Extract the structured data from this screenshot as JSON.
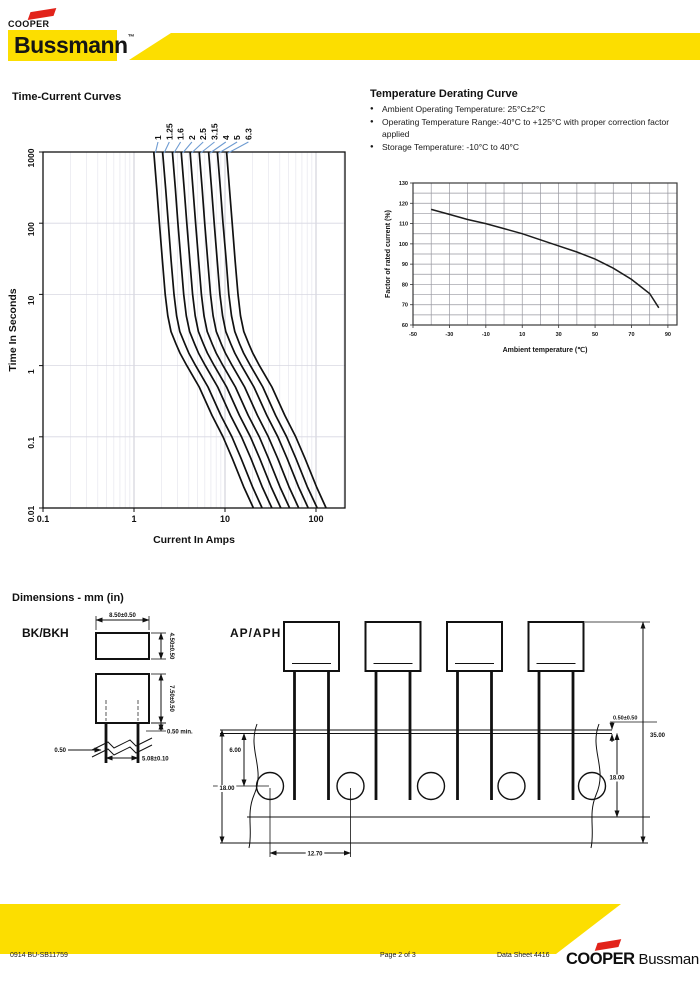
{
  "header": {
    "brand_top": "COOPER",
    "brand_main": "Bussmann",
    "brand_tm": "™"
  },
  "colors": {
    "yellow": "#FCDE00",
    "red": "#E2231A",
    "leader_blue": "#6E9BD1",
    "curve_black": "#111111"
  },
  "derating": {
    "title": "Temperature Derating Curve",
    "bullets": [
      "Ambient Operating Temperature: 25°C±2°C",
      "Operating Temperature Range:-40°C to +125°C with proper correction factor applied",
      "Storage Temperature: -10°C to 40°C"
    ]
  },
  "chart_data": [
    {
      "type": "line",
      "title": "Time-Current Curves",
      "xlabel": "Current In Amps",
      "ylabel": "Time In Seconds",
      "xscale": "log",
      "yscale": "log",
      "xlim": [
        0.1,
        210
      ],
      "ylim": [
        0.01,
        1000
      ],
      "xticks": [
        0.1,
        1,
        10,
        100
      ],
      "yticks": [
        0.01,
        0.1,
        1,
        10,
        100,
        1000
      ],
      "grid": "log-minor-vertical, log-major-horizontal",
      "legend_position": "labels-above-curves",
      "times": [
        1000,
        300,
        100,
        30,
        10,
        5,
        3,
        2,
        1.5,
        1,
        0.5,
        0.2,
        0.1,
        0.05,
        0.02,
        0.01
      ],
      "series": [
        {
          "name": "1",
          "amps": [
            1.65,
            1.78,
            1.9,
            2.05,
            2.2,
            2.35,
            2.55,
            2.9,
            3.2,
            3.8,
            5.2,
            7.2,
            9.5,
            12.0,
            16.0,
            20.5
          ]
        },
        {
          "name": "1.25",
          "amps": [
            2.06,
            2.23,
            2.38,
            2.56,
            2.75,
            2.94,
            3.19,
            3.63,
            4.0,
            4.75,
            6.5,
            9.0,
            11.9,
            15.0,
            20.0,
            25.6
          ]
        },
        {
          "name": "1.6",
          "amps": [
            2.64,
            2.85,
            3.04,
            3.28,
            3.52,
            3.76,
            4.08,
            4.64,
            5.12,
            6.08,
            8.32,
            11.5,
            15.2,
            19.2,
            25.6,
            32.8
          ]
        },
        {
          "name": "2",
          "amps": [
            3.3,
            3.56,
            3.8,
            4.1,
            4.4,
            4.7,
            5.1,
            5.8,
            6.4,
            7.6,
            10.4,
            14.4,
            19.0,
            24.0,
            32.0,
            41.0
          ]
        },
        {
          "name": "2.5",
          "amps": [
            4.13,
            4.45,
            4.75,
            5.13,
            5.5,
            5.88,
            6.38,
            7.25,
            8.0,
            9.5,
            13.0,
            18.0,
            23.8,
            30.0,
            40.0,
            51.3
          ]
        },
        {
          "name": "3.15",
          "amps": [
            5.2,
            5.61,
            5.99,
            6.46,
            6.93,
            7.4,
            8.03,
            9.14,
            10.1,
            12.0,
            16.4,
            22.7,
            29.9,
            37.8,
            50.4,
            64.6
          ]
        },
        {
          "name": "4",
          "amps": [
            6.6,
            7.12,
            7.6,
            8.2,
            8.8,
            9.4,
            10.2,
            11.6,
            12.8,
            15.2,
            20.8,
            28.8,
            38.0,
            48.0,
            64.0,
            82.0
          ]
        },
        {
          "name": "5",
          "amps": [
            8.25,
            8.9,
            9.5,
            10.3,
            11.0,
            11.8,
            12.8,
            14.5,
            16.0,
            19.0,
            26.0,
            36.0,
            47.5,
            60.0,
            80.0,
            103.0
          ]
        },
        {
          "name": "6.3",
          "amps": [
            10.4,
            11.2,
            12.0,
            12.9,
            13.9,
            14.8,
            16.1,
            18.3,
            20.2,
            23.9,
            32.8,
            45.4,
            59.9,
            75.6,
            101.0,
            129.0
          ]
        }
      ]
    },
    {
      "type": "line",
      "title": "Temperature Derating Curve",
      "xlabel": "Ambient temperature  (℃)",
      "ylabel": "Factor of rated current  (%)",
      "xlim": [
        -50,
        95
      ],
      "ylim": [
        60,
        130
      ],
      "xticks": [
        -50,
        -30,
        -10,
        10,
        30,
        50,
        70,
        90
      ],
      "yticks": [
        60,
        70,
        80,
        90,
        100,
        110,
        120,
        130
      ],
      "grid": "x-every-10, y-every-5",
      "x": [
        -40,
        -30,
        -20,
        -10,
        0,
        10,
        20,
        30,
        40,
        50,
        60,
        70,
        80,
        85
      ],
      "y": [
        117,
        114.5,
        112,
        110,
        107.5,
        105,
        102,
        99,
        96,
        92.5,
        88,
        82.5,
        75.5,
        68.5
      ]
    }
  ],
  "dimensions": {
    "title": "Dimensions - mm (in)",
    "bk": {
      "label": "BK/BKH",
      "body_width": "8.50±0.50",
      "body_depth": "4.50±0.50",
      "body_height": "7.50±0.50",
      "lead_diameter": "0.50",
      "lead_spacing": "5.08±0.10",
      "lead_min": "0.50 min."
    },
    "ap": {
      "label": "AP/APH",
      "tape_gap": "0.50±0.50",
      "hole_to_edge": "6.00",
      "tape_width_left": "18.00",
      "hole_pitch": "12.70",
      "tape_width_right": "18.00",
      "overall_height": "35.00"
    }
  },
  "footer": {
    "left": "0914   BU-SB11759",
    "center": "Page 2 of 3",
    "right": "Data Sheet 4416",
    "brand_bold": "COOPER",
    "brand_regular": "Bussmann"
  }
}
